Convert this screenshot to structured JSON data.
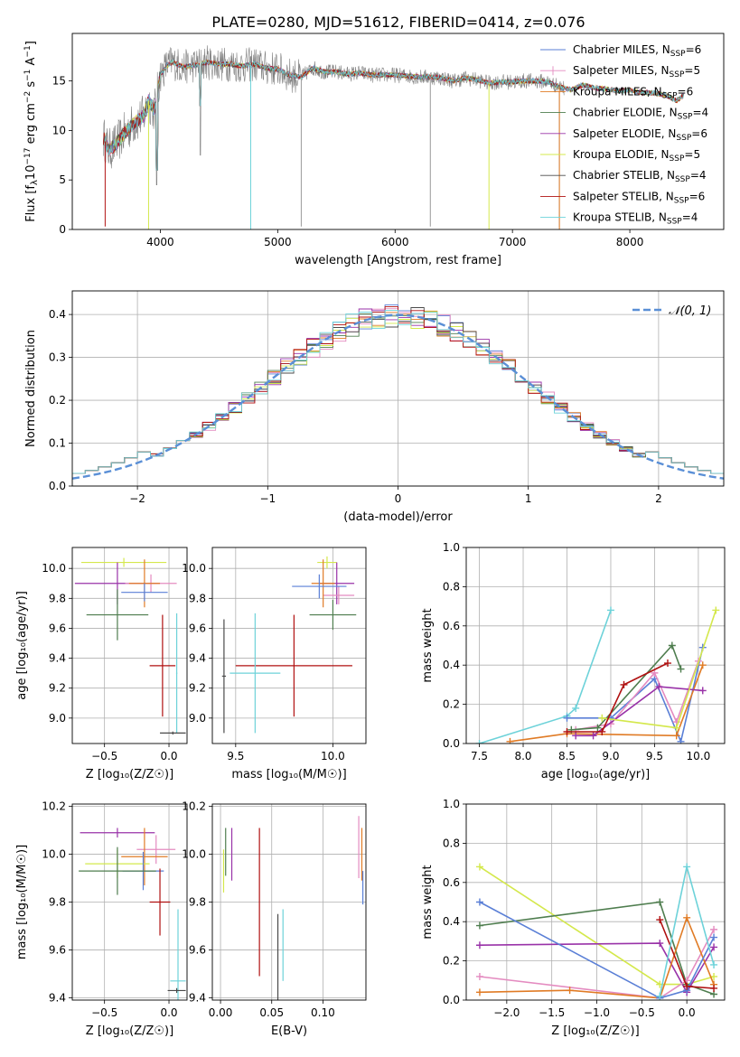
{
  "figure_title": "PLATE=0280, MJD=51612, FIBERID=0414, z=0.076",
  "legend_entries": [
    {
      "model": "Chabrier MILES",
      "nssp": "6",
      "color": "#5a7fd6"
    },
    {
      "model": "Salpeter MILES",
      "nssp": "5",
      "color": "#e48bc0"
    },
    {
      "model": "Kroupa MILES",
      "nssp": "6",
      "color": "#e07b25"
    },
    {
      "model": "Chabrier ELODIE",
      "nssp": "4",
      "color": "#4e7d4e"
    },
    {
      "model": "Salpeter ELODIE",
      "nssp": "6",
      "color": "#9932a8"
    },
    {
      "model": "Kroupa ELODIE",
      "nssp": "5",
      "color": "#d4e84c"
    },
    {
      "model": "Chabrier STELIB",
      "nssp": "4",
      "color": "#4a4a4a"
    },
    {
      "model": "Salpeter STELIB",
      "nssp": "6",
      "color": "#b01010"
    },
    {
      "model": "Kroupa STELIB",
      "nssp": "4",
      "color": "#6dd2d9"
    }
  ],
  "chart_data": [
    {
      "id": "spectrum",
      "type": "line",
      "xlabel": "wavelength [Angstrom, rest frame]",
      "ylabel": "Flux [f",
      "ylabel_parts": [
        "λ",
        "10",
        "−17",
        " erg cm",
        "−2",
        " s",
        "−1",
        " A",
        "−1",
        "]"
      ],
      "xlim": [
        3250,
        8800
      ],
      "ylim": [
        0,
        19.8
      ],
      "xticks": [
        4000,
        5000,
        6000,
        7000,
        8000
      ],
      "yticks": [
        0,
        5,
        10,
        15
      ],
      "data_color": "#808080",
      "model_color": "#6dd2d9",
      "spectrum_x": [
        3520,
        3560,
        3620,
        3700,
        3780,
        3860,
        3900,
        3950,
        4000,
        4050,
        4100,
        4200,
        4300,
        4400,
        4500,
        4600,
        4700,
        4800,
        4900,
        5000,
        5100,
        5200,
        5300,
        5400,
        5500,
        5600,
        5700,
        5800,
        5900,
        6000,
        6100,
        6200,
        6300,
        6400,
        6500,
        6600,
        6700,
        6800,
        6900,
        7000,
        7100,
        7200,
        7300,
        7400,
        7500,
        7600,
        7700,
        7800,
        7900,
        8000,
        8100,
        8200,
        8300,
        8400,
        8450
      ],
      "spectrum_y": [
        9.2,
        8.0,
        8.6,
        9.8,
        10.8,
        11.5,
        13.0,
        12.0,
        15.6,
        16.5,
        16.9,
        16.4,
        16.6,
        16.9,
        16.7,
        16.7,
        16.5,
        16.7,
        16.3,
        16.2,
        15.6,
        15.4,
        16.3,
        15.9,
        15.9,
        15.7,
        15.8,
        15.6,
        15.6,
        15.6,
        15.5,
        15.4,
        15.4,
        15.3,
        15.0,
        15.3,
        15.1,
        14.8,
        14.9,
        14.9,
        15.0,
        15.0,
        14.9,
        14.4,
        14.1,
        14.6,
        14.3,
        14.2,
        14.0,
        14.1,
        13.8,
        13.8,
        13.6,
        13.0,
        13.5
      ]
    },
    {
      "id": "residuals",
      "type": "histogram",
      "xlabel": "(data-model)/error",
      "ylabel": "Normed distribution",
      "xlim": [
        -2.5,
        2.5
      ],
      "ylim": [
        0,
        0.455
      ],
      "xticks": [
        -2,
        -1,
        0,
        1,
        2
      ],
      "xtick_labels": [
        "−2",
        "−1",
        "0",
        "1",
        "2"
      ],
      "yticks": [
        0.0,
        0.1,
        0.2,
        0.3,
        0.4
      ],
      "ytick_labels": [
        "0.0",
        "0.1",
        "0.2",
        "0.3",
        "0.4"
      ],
      "bin_width": 0.1,
      "reference_curve": {
        "name": "𝒩(0, 1)",
        "mean": 0,
        "sigma": 1,
        "color": "#5a8fd6",
        "style": "dashed"
      }
    },
    {
      "id": "age-vs-z",
      "type": "scatter",
      "xlabel": "Z [log₁₀(Z/Z☉)]",
      "ylabel": "age  [log₁₀(age/yr)]",
      "xlim": [
        -0.75,
        0.14
      ],
      "ylim": [
        8.83,
        10.14
      ],
      "xticks": [
        -0.5,
        0.0
      ],
      "xtick_labels": [
        "−0.5",
        "0.0"
      ],
      "yticks": [
        9.0,
        9.2,
        9.4,
        9.6,
        9.8,
        10.0
      ],
      "ytick_labels": [
        "9.0",
        "9.2",
        "9.4",
        "9.6",
        "9.8",
        "10.0"
      ],
      "points": [
        {
          "x": -0.35,
          "y": 10.04,
          "xerr": 0.33,
          "yerr": 0.03,
          "color": "#d4e84c"
        },
        {
          "x": -0.4,
          "y": 9.9,
          "xerr": 0.33,
          "yerr": 0.14,
          "color": "#9932a8"
        },
        {
          "x": -0.14,
          "y": 9.9,
          "xerr": 0.2,
          "yerr": 0.06,
          "color": "#e48bc0"
        },
        {
          "x": -0.19,
          "y": 9.9,
          "xerr": 0.12,
          "yerr": 0.16,
          "color": "#e07b25"
        },
        {
          "x": -0.19,
          "y": 9.84,
          "xerr": 0.18,
          "yerr": 0.06,
          "color": "#5a7fd6"
        },
        {
          "x": -0.4,
          "y": 9.69,
          "xerr": 0.24,
          "yerr": 0.17,
          "color": "#4e7d4e"
        },
        {
          "x": -0.05,
          "y": 9.35,
          "xerr": 0.1,
          "yerr": 0.34,
          "color": "#b01010"
        },
        {
          "x": 0.06,
          "y": 9.3,
          "xerr": 0.005,
          "yerr": 0.4,
          "color": "#6dd2d9"
        },
        {
          "x": 0.03,
          "y": 8.9,
          "xerr": 0.1,
          "yerr": 0.01,
          "color": "#4a4a4a"
        }
      ]
    },
    {
      "id": "age-vs-mass",
      "type": "scatter",
      "xlabel": "mass [log₁₀(M/M☉)]",
      "ylabel": "",
      "xlim": [
        9.38,
        10.17
      ],
      "ylim": [
        8.83,
        10.14
      ],
      "xticks": [
        9.5,
        10.0
      ],
      "xtick_labels": [
        "9.5",
        "10.0"
      ],
      "yticks": [
        9.0,
        9.2,
        9.4,
        9.6,
        9.8,
        10.0
      ],
      "ytick_labels": [
        "9.0",
        "9.2",
        "9.4",
        "9.6",
        "9.8",
        "10.0"
      ],
      "points": [
        {
          "x": 9.97,
          "y": 10.04,
          "xerr": 0.05,
          "yerr": 0.04,
          "color": "#d4e84c"
        },
        {
          "x": 10.02,
          "y": 9.9,
          "xerr": 0.09,
          "yerr": 0.14,
          "color": "#9932a8"
        },
        {
          "x": 10.03,
          "y": 9.82,
          "xerr": 0.08,
          "yerr": 0.06,
          "color": "#e48bc0"
        },
        {
          "x": 9.95,
          "y": 9.9,
          "xerr": 0.06,
          "yerr": 0.16,
          "color": "#e07b25"
        },
        {
          "x": 9.93,
          "y": 9.88,
          "xerr": 0.14,
          "yerr": 0.08,
          "color": "#5a7fd6"
        },
        {
          "x": 10.0,
          "y": 9.69,
          "xerr": 0.12,
          "yerr": 0.1,
          "color": "#4e7d4e"
        },
        {
          "x": 9.8,
          "y": 9.35,
          "xerr": 0.3,
          "yerr": 0.34,
          "color": "#b01010"
        },
        {
          "x": 9.6,
          "y": 9.3,
          "xerr": 0.13,
          "yerr": 0.4,
          "color": "#6dd2d9"
        },
        {
          "x": 9.44,
          "y": 9.28,
          "xerr": 0.01,
          "yerr": 0.38,
          "color": "#4a4a4a"
        }
      ]
    },
    {
      "id": "weight-vs-age",
      "type": "line",
      "xlabel": "age  [log₁₀(age/yr)]",
      "ylabel": "mass weight",
      "xlim": [
        7.35,
        10.3
      ],
      "ylim": [
        0.0,
        1.0
      ],
      "xticks": [
        7.5,
        8.0,
        8.5,
        9.0,
        9.5,
        10.0
      ],
      "xtick_labels": [
        "7.5",
        "8.0",
        "8.5",
        "9.0",
        "9.5",
        "10.0"
      ],
      "yticks": [
        0.0,
        0.2,
        0.4,
        0.6,
        0.8,
        1.0
      ],
      "ytick_labels": [
        "0.0",
        "0.2",
        "0.4",
        "0.6",
        "0.8",
        "1.0"
      ],
      "series": [
        {
          "color": "#6dd2d9",
          "x": [
            7.5,
            8.5,
            8.6,
            9.0
          ],
          "y": [
            0.0,
            0.14,
            0.18,
            0.68
          ]
        },
        {
          "color": "#5a7fd6",
          "x": [
            8.5,
            9.0,
            9.5,
            9.8,
            10.05
          ],
          "y": [
            0.13,
            0.13,
            0.33,
            0.01,
            0.49
          ]
        },
        {
          "color": "#e48bc0",
          "x": [
            8.6,
            9.0,
            9.5,
            9.75,
            10.0
          ],
          "y": [
            0.07,
            0.1,
            0.36,
            0.11,
            0.42
          ]
        },
        {
          "color": "#e07b25",
          "x": [
            7.85,
            8.5,
            9.75,
            10.05
          ],
          "y": [
            0.01,
            0.05,
            0.04,
            0.4
          ]
        },
        {
          "color": "#4e7d4e",
          "x": [
            8.55,
            8.85,
            9.7,
            9.8
          ],
          "y": [
            0.07,
            0.08,
            0.5,
            0.38
          ]
        },
        {
          "color": "#9932a8",
          "x": [
            8.6,
            8.8,
            9.55,
            10.05
          ],
          "y": [
            0.04,
            0.04,
            0.29,
            0.27
          ]
        },
        {
          "color": "#d4e84c",
          "x": [
            8.9,
            9.75,
            10.2
          ],
          "y": [
            0.13,
            0.08,
            0.68
          ]
        },
        {
          "color": "#b01010",
          "x": [
            8.5,
            8.9,
            9.15,
            9.65
          ],
          "y": [
            0.06,
            0.06,
            0.3,
            0.41
          ]
        }
      ]
    },
    {
      "id": "mass-vs-z",
      "type": "scatter",
      "xlabel": "Z [log₁₀(Z/Z☉)]",
      "ylabel": "mass [log₁₀(M/M☉)]",
      "xlim": [
        -0.75,
        0.14
      ],
      "ylim": [
        9.39,
        10.21
      ],
      "xticks": [
        -0.5,
        0.0
      ],
      "xtick_labels": [
        "−0.5",
        "0.0"
      ],
      "yticks": [
        9.4,
        9.6,
        9.8,
        10.0,
        10.2
      ],
      "ytick_labels": [
        "9.4",
        "9.6",
        "9.8",
        "10.0",
        "10.2"
      ],
      "points": [
        {
          "x": -0.4,
          "y": 10.09,
          "xerr": 0.29,
          "yerr": 0.02,
          "color": "#9932a8"
        },
        {
          "x": -0.1,
          "y": 10.02,
          "xerr": 0.15,
          "yerr": 0.06,
          "color": "#e48bc0"
        },
        {
          "x": -0.19,
          "y": 9.99,
          "xerr": 0.18,
          "yerr": 0.12,
          "color": "#e07b25"
        },
        {
          "x": -0.4,
          "y": 9.96,
          "xerr": 0.25,
          "yerr": 0.06,
          "color": "#d4e84c"
        },
        {
          "x": -0.2,
          "y": 9.93,
          "xerr": 0.16,
          "yerr": 0.08,
          "color": "#5a7fd6"
        },
        {
          "x": -0.4,
          "y": 9.93,
          "xerr": 0.3,
          "yerr": 0.1,
          "color": "#4e7d4e"
        },
        {
          "x": -0.07,
          "y": 9.8,
          "xerr": 0.08,
          "yerr": 0.14,
          "color": "#b01010"
        },
        {
          "x": 0.07,
          "y": 9.47,
          "xerr": 0.06,
          "yerr": 0.3,
          "color": "#6dd2d9"
        },
        {
          "x": 0.06,
          "y": 9.43,
          "xerr": 0.07,
          "yerr": 0.01,
          "color": "#4a4a4a"
        }
      ]
    },
    {
      "id": "mass-vs-ebv",
      "type": "scatter",
      "xlabel": "E(B-V)",
      "ylabel": "",
      "xlim": [
        -0.008,
        0.142
      ],
      "ylim": [
        9.39,
        10.21
      ],
      "xticks": [
        0.0,
        0.05,
        0.1
      ],
      "xtick_labels": [
        "0.00",
        "0.05",
        "0.10"
      ],
      "yticks": [
        9.4,
        9.6,
        9.8,
        10.0,
        10.2
      ],
      "ytick_labels": [
        "9.4",
        "9.6",
        "9.8",
        "10.0",
        "10.2"
      ],
      "points": [
        {
          "x": 0.135,
          "y": 10.03,
          "xerr": 0.0,
          "yerr": 0.13,
          "color": "#e48bc0"
        },
        {
          "x": 0.138,
          "y": 10.0,
          "xerr": 0.0,
          "yerr": 0.11,
          "color": "#e07b25"
        },
        {
          "x": 0.139,
          "y": 9.86,
          "xerr": 0.0,
          "yerr": 0.07,
          "color": "#5a7fd6"
        },
        {
          "x": 0.003,
          "y": 9.93,
          "xerr": 0.0,
          "yerr": 0.09,
          "color": "#d4e84c"
        },
        {
          "x": 0.005,
          "y": 10.01,
          "xerr": 0.0,
          "yerr": 0.1,
          "color": "#4e7d4e"
        },
        {
          "x": 0.011,
          "y": 10.0,
          "xerr": 0.0,
          "yerr": 0.11,
          "color": "#9932a8"
        },
        {
          "x": 0.038,
          "y": 9.8,
          "xerr": 0.0,
          "yerr": 0.31,
          "color": "#b01010"
        },
        {
          "x": 0.056,
          "y": 9.54,
          "xerr": 0.0,
          "yerr": 0.21,
          "color": "#4a4a4a"
        },
        {
          "x": 0.061,
          "y": 9.62,
          "xerr": 0.0,
          "yerr": 0.15,
          "color": "#6dd2d9"
        }
      ]
    },
    {
      "id": "weight-vs-z",
      "type": "line",
      "xlabel": "Z [log₁₀(Z/Z☉)]",
      "ylabel": "mass weight",
      "xlim": [
        -2.45,
        0.42
      ],
      "ylim": [
        0.0,
        1.0
      ],
      "xticks": [
        -2.0,
        -1.5,
        -1.0,
        -0.5,
        0.0
      ],
      "xtick_labels": [
        "−2.0",
        "−1.5",
        "−1.0",
        "−0.5",
        "0.0"
      ],
      "yticks": [
        0.0,
        0.2,
        0.4,
        0.6,
        0.8,
        1.0
      ],
      "ytick_labels": [
        "0.0",
        "0.2",
        "0.4",
        "0.6",
        "0.8",
        "1.0"
      ],
      "series": [
        {
          "color": "#d4e84c",
          "x": [
            -2.3,
            -0.3,
            0.0,
            0.3
          ],
          "y": [
            0.68,
            0.08,
            0.08,
            0.12
          ]
        },
        {
          "color": "#4e7d4e",
          "x": [
            -2.3,
            -0.3,
            0.0,
            0.3
          ],
          "y": [
            0.38,
            0.5,
            0.08,
            0.03
          ]
        },
        {
          "color": "#9932a8",
          "x": [
            -2.3,
            -0.3,
            0.0,
            0.3
          ],
          "y": [
            0.28,
            0.29,
            0.04,
            0.27
          ]
        },
        {
          "color": "#e48bc0",
          "x": [
            -2.3,
            -0.3,
            0.0,
            0.3
          ],
          "y": [
            0.12,
            0.01,
            0.1,
            0.36
          ]
        },
        {
          "color": "#e07b25",
          "x": [
            -2.3,
            -1.3,
            -0.3,
            0.0,
            0.3
          ],
          "y": [
            0.04,
            0.05,
            0.01,
            0.42,
            0.08
          ]
        },
        {
          "color": "#5a7fd6",
          "x": [
            -2.3,
            -0.3,
            0.0,
            0.3
          ],
          "y": [
            0.5,
            0.01,
            0.05,
            0.32
          ]
        },
        {
          "color": "#b01010",
          "x": [
            -0.3,
            0.0,
            0.3
          ],
          "y": [
            0.41,
            0.07,
            0.06
          ]
        },
        {
          "color": "#6dd2d9",
          "x": [
            -0.3,
            0.0,
            0.3
          ],
          "y": [
            0.02,
            0.68,
            0.18
          ]
        }
      ]
    }
  ]
}
